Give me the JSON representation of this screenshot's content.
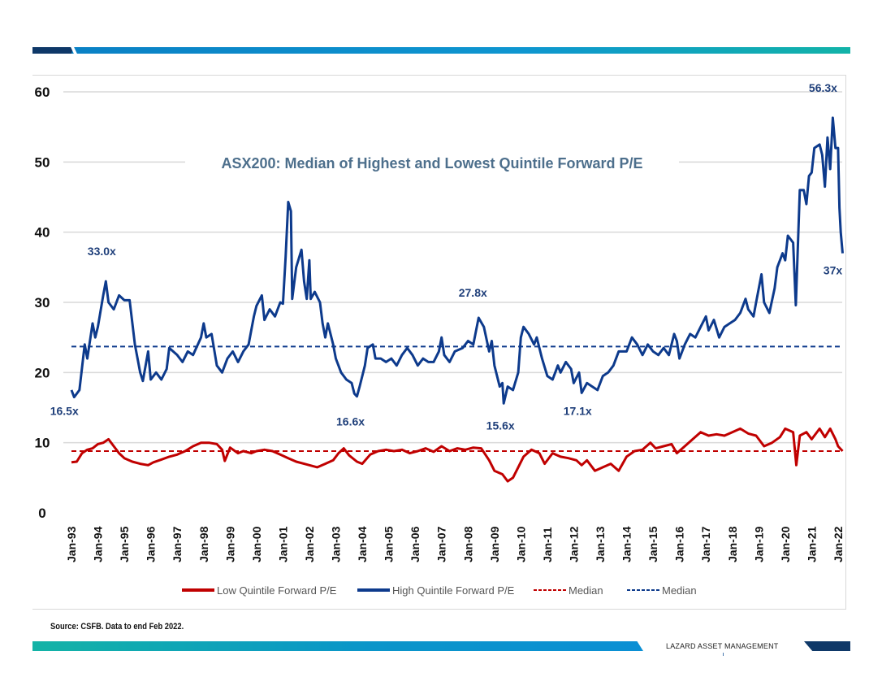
{
  "chart_data": {
    "type": "line",
    "title": "ASX200: Median of Highest and Lowest Quintile Forward P/E",
    "xlabel": "",
    "ylabel": "",
    "ylim": [
      0,
      60
    ],
    "yticks": [
      0,
      10,
      20,
      30,
      40,
      50,
      60
    ],
    "xlim": [
      1993,
      2022.17
    ],
    "xtick_labels": [
      "Jan-93",
      "Jan-94",
      "Jan-95",
      "Jan-96",
      "Jan-97",
      "Jan-98",
      "Jan-99",
      "Jan-00",
      "Jan-01",
      "Jan-02",
      "Jan-03",
      "Jan-04",
      "Jan-05",
      "Jan-06",
      "Jan-07",
      "Jan-08",
      "Jan-09",
      "Jan-10",
      "Jan-11",
      "Jan-12",
      "Jan-13",
      "Jan-14",
      "Jan-15",
      "Jan-16",
      "Jan-17",
      "Jan-18",
      "Jan-19",
      "Jan-20",
      "Jan-21",
      "Jan-22"
    ],
    "grid": true,
    "legend_position": "bottom",
    "series": [
      {
        "name": "Low Quintile Forward P/E",
        "color": "#c00000",
        "style": "solid",
        "x": [
          1993,
          1993.2,
          1993.4,
          1993.6,
          1993.8,
          1994.0,
          1994.2,
          1994.4,
          1994.6,
          1994.8,
          1995.0,
          1995.3,
          1995.6,
          1995.9,
          1996.1,
          1996.4,
          1996.7,
          1997.0,
          1997.3,
          1997.6,
          1997.9,
          1998.2,
          1998.5,
          1998.7,
          1998.8,
          1999.0,
          1999.3,
          1999.5,
          1999.8,
          2000.0,
          2000.3,
          2000.6,
          2000.9,
          2001.2,
          2001.5,
          2001.8,
          2002.0,
          2002.3,
          2002.6,
          2002.9,
          2003.1,
          2003.3,
          2003.5,
          2003.8,
          2004.0,
          2004.3,
          2004.6,
          2004.9,
          2005.2,
          2005.5,
          2005.8,
          2006.1,
          2006.4,
          2006.7,
          2007.0,
          2007.3,
          2007.6,
          2007.9,
          2008.2,
          2008.5,
          2008.8,
          2009.0,
          2009.3,
          2009.5,
          2009.7,
          2009.9,
          2010.1,
          2010.4,
          2010.7,
          2010.9,
          2011.2,
          2011.5,
          2011.8,
          2012.1,
          2012.3,
          2012.5,
          2012.8,
          2013.1,
          2013.4,
          2013.7,
          2014.0,
          2014.3,
          2014.6,
          2014.9,
          2015.1,
          2015.4,
          2015.7,
          2015.9,
          2016.2,
          2016.5,
          2016.8,
          2017.1,
          2017.4,
          2017.7,
          2018.0,
          2018.3,
          2018.6,
          2018.9,
          2019.2,
          2019.5,
          2019.8,
          2020.0,
          2020.3,
          2020.42,
          2020.55,
          2020.8,
          2021.0,
          2021.3,
          2021.5,
          2021.7,
          2021.9,
          2022.0,
          2022.17
        ],
        "values": [
          7.2,
          7.3,
          8.5,
          9,
          9.2,
          9.8,
          10,
          10.5,
          9.5,
          8.5,
          7.8,
          7.3,
          7,
          6.8,
          7.2,
          7.6,
          8,
          8.3,
          8.8,
          9.5,
          10,
          10,
          9.8,
          9,
          7.4,
          9.3,
          8.5,
          8.8,
          8.5,
          8.8,
          9,
          8.8,
          8.3,
          7.8,
          7.3,
          7,
          6.8,
          6.5,
          7,
          7.5,
          8.5,
          9.2,
          8.2,
          7.3,
          7.0,
          8.3,
          8.8,
          9,
          8.8,
          9,
          8.5,
          8.8,
          9.2,
          8.7,
          9.5,
          8.8,
          9.2,
          9,
          9.3,
          9.2,
          7.5,
          6,
          5.5,
          4.5,
          5,
          6.5,
          8,
          9,
          8.5,
          7,
          8.5,
          8,
          7.8,
          7.5,
          6.8,
          7.5,
          6,
          6.5,
          7,
          6,
          8,
          8.8,
          9,
          10,
          9.2,
          9.5,
          9.8,
          8.5,
          9.5,
          10.5,
          11.5,
          11,
          11.2,
          11,
          11.5,
          12,
          11.3,
          11,
          9.5,
          10,
          10.8,
          12,
          11.5,
          6.8,
          11,
          11.5,
          10.5,
          12,
          10.8,
          12,
          10.5,
          9.5,
          8.8
        ]
      },
      {
        "name": "High Quintile Forward P/E",
        "color": "#0d3a8c",
        "style": "solid",
        "x": [
          1993.0,
          1993.1,
          1993.3,
          1993.5,
          1993.6,
          1993.8,
          1993.9,
          1994.0,
          1994.2,
          1994.3,
          1994.4,
          1994.6,
          1994.8,
          1995.0,
          1995.2,
          1995.4,
          1995.6,
          1995.7,
          1995.9,
          1996.0,
          1996.2,
          1996.4,
          1996.6,
          1996.7,
          1997.0,
          1997.2,
          1997.4,
          1997.6,
          1997.9,
          1998.0,
          1998.1,
          1998.3,
          1998.5,
          1998.7,
          1998.9,
          1999.1,
          1999.3,
          1999.5,
          1999.7,
          1999.9,
          2000.0,
          2000.2,
          2000.3,
          2000.5,
          2000.7,
          2000.9,
          2001.0,
          2001.1,
          2001.2,
          2001.3,
          2001.35,
          2001.5,
          2001.7,
          2001.8,
          2001.9,
          2002.0,
          2002.05,
          2002.2,
          2002.4,
          2002.5,
          2002.6,
          2002.7,
          2002.9,
          2003.0,
          2003.2,
          2003.4,
          2003.6,
          2003.7,
          2003.8,
          2003.9,
          2004.1,
          2004.2,
          2004.4,
          2004.5,
          2004.7,
          2004.9,
          2005.1,
          2005.3,
          2005.5,
          2005.7,
          2005.9,
          2006.1,
          2006.3,
          2006.5,
          2006.7,
          2006.9,
          2007.0,
          2007.1,
          2007.3,
          2007.5,
          2007.8,
          2008.0,
          2008.2,
          2008.4,
          2008.6,
          2008.8,
          2008.9,
          2009.0,
          2009.2,
          2009.3,
          2009.35,
          2009.5,
          2009.7,
          2009.9,
          2010.0,
          2010.1,
          2010.3,
          2010.5,
          2010.6,
          2010.8,
          2011.0,
          2011.2,
          2011.4,
          2011.5,
          2011.7,
          2011.9,
          2012.0,
          2012.2,
          2012.3,
          2012.5,
          2012.7,
          2012.9,
          2013.1,
          2013.3,
          2013.5,
          2013.7,
          2014.0,
          2014.2,
          2014.4,
          2014.6,
          2014.8,
          2015.0,
          2015.2,
          2015.4,
          2015.6,
          2015.8,
          2015.9,
          2016.0,
          2016.2,
          2016.4,
          2016.6,
          2016.8,
          2017.0,
          2017.1,
          2017.3,
          2017.5,
          2017.7,
          2017.9,
          2018.1,
          2018.3,
          2018.5,
          2018.6,
          2018.8,
          2018.9,
          2019.1,
          2019.2,
          2019.4,
          2019.6,
          2019.7,
          2019.9,
          2020.0,
          2020.1,
          2020.3,
          2020.4,
          2020.55,
          2020.7,
          2020.8,
          2020.9,
          2021.0,
          2021.1,
          2021.3,
          2021.4,
          2021.5,
          2021.6,
          2021.7,
          2021.8,
          2021.9,
          2022.0,
          2022.05,
          2022.1,
          2022.17
        ],
        "values": [
          17.5,
          16.5,
          17.5,
          24,
          22,
          27,
          25,
          26.5,
          31,
          33.0,
          30,
          29,
          31,
          30.3,
          30.3,
          24,
          20,
          18.8,
          23,
          19,
          20,
          19,
          20.5,
          23.5,
          22.5,
          21.5,
          23,
          22.5,
          25,
          27,
          25,
          25.5,
          21,
          20,
          22,
          23,
          21.5,
          23,
          24,
          28,
          29.5,
          31,
          27.5,
          29,
          28,
          30,
          29.8,
          36.5,
          44.3,
          43,
          30.5,
          35,
          37.5,
          33,
          30.5,
          36,
          30.5,
          31.5,
          30,
          27,
          25,
          27,
          24,
          22,
          20,
          19,
          18.5,
          17,
          16.6,
          18,
          21,
          23.5,
          24,
          22,
          22,
          21.5,
          22,
          21,
          22.5,
          23.5,
          22.5,
          21,
          22,
          21.5,
          21.5,
          23,
          25,
          22.5,
          21.5,
          23,
          23.5,
          24.5,
          24,
          27.8,
          26.5,
          23,
          24.5,
          21,
          18,
          18.5,
          15.6,
          18,
          17.5,
          20,
          25,
          26.5,
          25.5,
          24,
          25,
          22,
          19.5,
          19,
          21,
          20,
          21.5,
          20.5,
          18.5,
          20,
          17.1,
          18.5,
          18,
          17.5,
          19.5,
          20,
          21,
          23,
          23,
          25,
          24,
          22.5,
          24,
          23,
          22.5,
          23.5,
          22.5,
          25.5,
          24.5,
          22,
          24,
          25.5,
          25,
          26.5,
          28,
          26,
          27.5,
          25,
          26.5,
          27,
          27.5,
          28.5,
          30.5,
          29,
          28,
          30,
          34,
          30,
          28.5,
          32,
          35,
          37,
          36,
          39.5,
          38.5,
          29.6,
          46,
          46,
          44,
          48,
          48.5,
          52,
          52.5,
          51,
          46.5,
          53.5,
          49,
          56.3,
          52,
          52,
          43.5,
          40,
          37
        ]
      },
      {
        "name": "Median",
        "color": "#c00000",
        "style": "dashed",
        "constant": 8.8
      },
      {
        "name": "Median",
        "color": "#0d3a8c",
        "style": "dashed",
        "constant": 23.7
      }
    ],
    "annotations": [
      {
        "text": "33.0x",
        "x": 1994.3,
        "y": 33.0
      },
      {
        "text": "16.5x",
        "x": 1993.1,
        "y": 16.5
      },
      {
        "text": "16.6x",
        "x": 2003.8,
        "y": 16.6
      },
      {
        "text": "27.8x",
        "x": 2008.4,
        "y": 27.8
      },
      {
        "text": "15.6x",
        "x": 2009.35,
        "y": 15.6
      },
      {
        "text": "17.1x",
        "x": 2012.3,
        "y": 17.1
      },
      {
        "text": "56.3x",
        "x": 2021.8,
        "y": 56.3
      },
      {
        "text": "37x",
        "x": 2022.17,
        "y": 37
      }
    ]
  },
  "footer": {
    "source": "Source: CSFB. Data to end Feb 2022.",
    "brand": "LAZARD ASSET MANAGEMENT"
  }
}
